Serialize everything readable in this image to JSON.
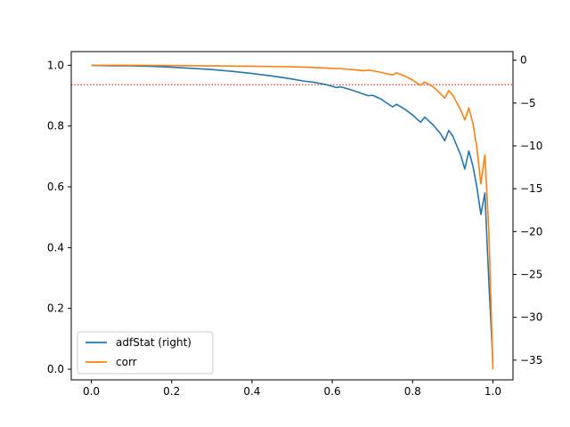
{
  "chart_data": {
    "type": "line",
    "title": "",
    "xlabel": "",
    "ylabel_left": "",
    "ylabel_right": "",
    "xlim": [
      -0.05,
      1.05
    ],
    "ylim_left": [
      -0.035,
      1.045
    ],
    "ylim_right": [
      -37.3,
      1.0
    ],
    "x_ticks": [
      0.0,
      0.2,
      0.4,
      0.6,
      0.8,
      1.0
    ],
    "x_tick_labels": [
      "0.0",
      "0.2",
      "0.4",
      "0.6",
      "0.8",
      "1.0"
    ],
    "y_left_ticks": [
      0.0,
      0.2,
      0.4,
      0.6,
      0.8,
      1.0
    ],
    "y_left_tick_labels": [
      "0.0",
      "0.2",
      "0.4",
      "0.6",
      "0.8",
      "1.0"
    ],
    "y_right_ticks": [
      -35,
      -30,
      -25,
      -20,
      -15,
      -10,
      -5,
      0
    ],
    "y_right_tick_labels": [
      "−35",
      "−30",
      "−25",
      "−20",
      "−15",
      "−10",
      "−5",
      "0"
    ],
    "grid": false,
    "legend_position": "lower-left",
    "reference_line": {
      "axis": "right",
      "y": -2.86,
      "color": "#ff0000",
      "style": "dotted"
    },
    "series": [
      {
        "name": "adfStat (right)",
        "axis": "right",
        "color": "#1f77b4",
        "x": [
          0.0,
          0.05,
          0.1,
          0.15,
          0.2,
          0.25,
          0.3,
          0.35,
          0.4,
          0.45,
          0.5,
          0.53,
          0.55,
          0.58,
          0.6,
          0.61,
          0.62,
          0.65,
          0.68,
          0.69,
          0.7,
          0.72,
          0.75,
          0.76,
          0.78,
          0.8,
          0.82,
          0.83,
          0.85,
          0.87,
          0.88,
          0.89,
          0.9,
          0.92,
          0.93,
          0.94,
          0.95,
          0.96,
          0.97,
          0.98,
          0.99,
          1.0
        ],
        "y": [
          -0.6,
          -0.65,
          -0.65,
          -0.72,
          -0.82,
          -0.95,
          -1.1,
          -1.3,
          -1.55,
          -1.85,
          -2.2,
          -2.45,
          -2.55,
          -2.8,
          -3.05,
          -3.2,
          -3.1,
          -3.5,
          -4.0,
          -4.15,
          -4.1,
          -4.5,
          -5.45,
          -5.15,
          -5.7,
          -6.4,
          -7.25,
          -6.65,
          -7.5,
          -8.6,
          -9.4,
          -8.2,
          -8.85,
          -11.1,
          -12.7,
          -10.6,
          -12.3,
          -14.8,
          -18.0,
          -15.5,
          -26.0,
          -35.3
        ]
      },
      {
        "name": "corr",
        "axis": "left",
        "color": "#ff7f0e",
        "x": [
          0.0,
          0.1,
          0.2,
          0.3,
          0.4,
          0.45,
          0.5,
          0.55,
          0.6,
          0.62,
          0.65,
          0.68,
          0.69,
          0.7,
          0.72,
          0.75,
          0.76,
          0.78,
          0.8,
          0.82,
          0.83,
          0.85,
          0.87,
          0.88,
          0.89,
          0.9,
          0.92,
          0.93,
          0.94,
          0.95,
          0.96,
          0.97,
          0.98,
          0.99,
          1.0
        ],
        "y": [
          1.0,
          1.0,
          0.999,
          0.998,
          0.997,
          0.996,
          0.995,
          0.993,
          0.99,
          0.989,
          0.986,
          0.982,
          0.984,
          0.982,
          0.977,
          0.968,
          0.975,
          0.965,
          0.951,
          0.934,
          0.945,
          0.93,
          0.906,
          0.892,
          0.917,
          0.902,
          0.852,
          0.82,
          0.86,
          0.81,
          0.73,
          0.61,
          0.705,
          0.45,
          0.0
        ]
      }
    ]
  }
}
